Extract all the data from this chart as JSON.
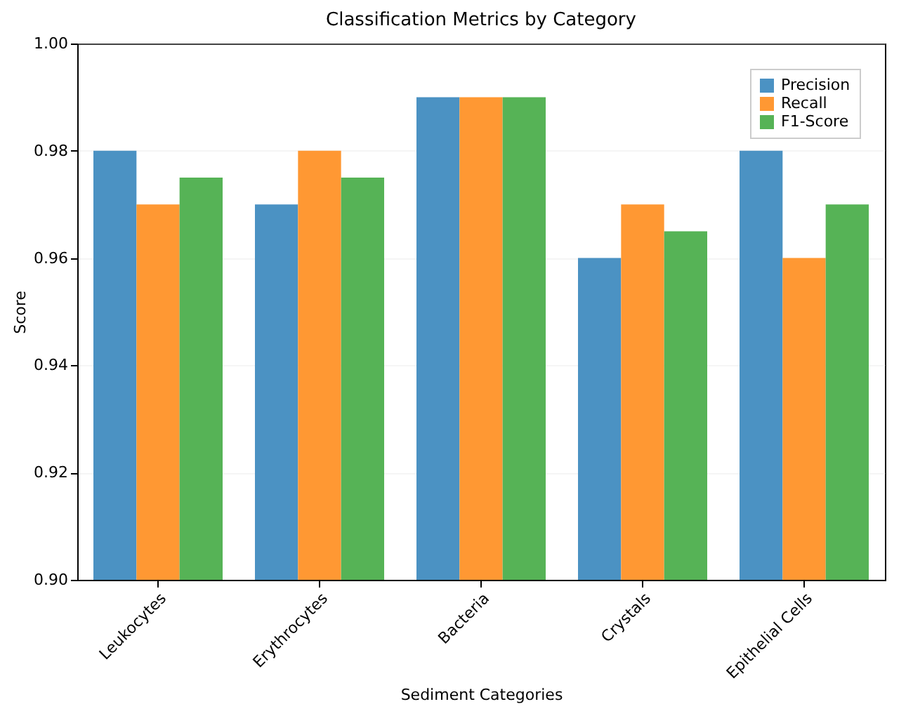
{
  "chart_data": {
    "type": "bar",
    "title": "Classification Metrics by Category",
    "xlabel": "Sediment Categories",
    "ylabel": "Score",
    "categories": [
      "Leukocytes",
      "Erythrocytes",
      "Bacteria",
      "Crystals",
      "Epithelial Cells"
    ],
    "series": [
      {
        "name": "Precision",
        "color": "#4b92c3",
        "values": [
          0.98,
          0.97,
          0.99,
          0.96,
          0.98
        ]
      },
      {
        "name": "Recall",
        "color": "#ff9833",
        "values": [
          0.97,
          0.98,
          0.99,
          0.97,
          0.96
        ]
      },
      {
        "name": "F1-Score",
        "color": "#56b356",
        "values": [
          0.975,
          0.975,
          0.99,
          0.965,
          0.97
        ]
      }
    ],
    "ylim": [
      0.9,
      1.0
    ],
    "yticks": [
      {
        "value": 0.9,
        "label": "0.90"
      },
      0.92,
      0.94,
      0.96,
      0.98,
      {
        "value": 1.0,
        "label": "1.00"
      }
    ],
    "grid": "y",
    "legend": "top right"
  }
}
